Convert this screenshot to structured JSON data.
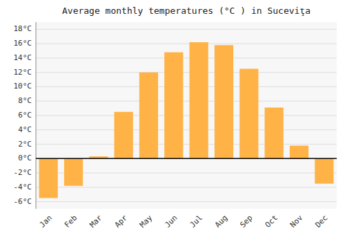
{
  "chart_data": {
    "type": "bar",
    "title": "Average monthly temperatures (°C ) in Suceviţa",
    "categories": [
      "Jan",
      "Feb",
      "Mar",
      "Apr",
      "May",
      "Jun",
      "Jul",
      "Aug",
      "Sep",
      "Oct",
      "Nov",
      "Dec"
    ],
    "values": [
      -5.5,
      -3.8,
      0.3,
      6.5,
      12.0,
      14.8,
      16.2,
      15.8,
      12.5,
      7.1,
      1.8,
      -3.5
    ],
    "color": "#FFB347",
    "ylim": [
      -7,
      19
    ],
    "yticks": [
      {
        "value": -6,
        "label": "-6°C"
      },
      {
        "value": -4,
        "label": "-4°C"
      },
      {
        "value": -2,
        "label": "-2°C"
      },
      {
        "value": 0,
        "label": "0°C"
      },
      {
        "value": 2,
        "label": "2°C"
      },
      {
        "value": 4,
        "label": "4°C"
      },
      {
        "value": 6,
        "label": "6°C"
      },
      {
        "value": 8,
        "label": "8°C"
      },
      {
        "value": 10,
        "label": "10°C"
      },
      {
        "value": 12,
        "label": "12°C"
      },
      {
        "value": 14,
        "label": "14°C"
      },
      {
        "value": 16,
        "label": "16°C"
      },
      {
        "value": 18,
        "label": "18°C"
      }
    ],
    "grid": true
  }
}
